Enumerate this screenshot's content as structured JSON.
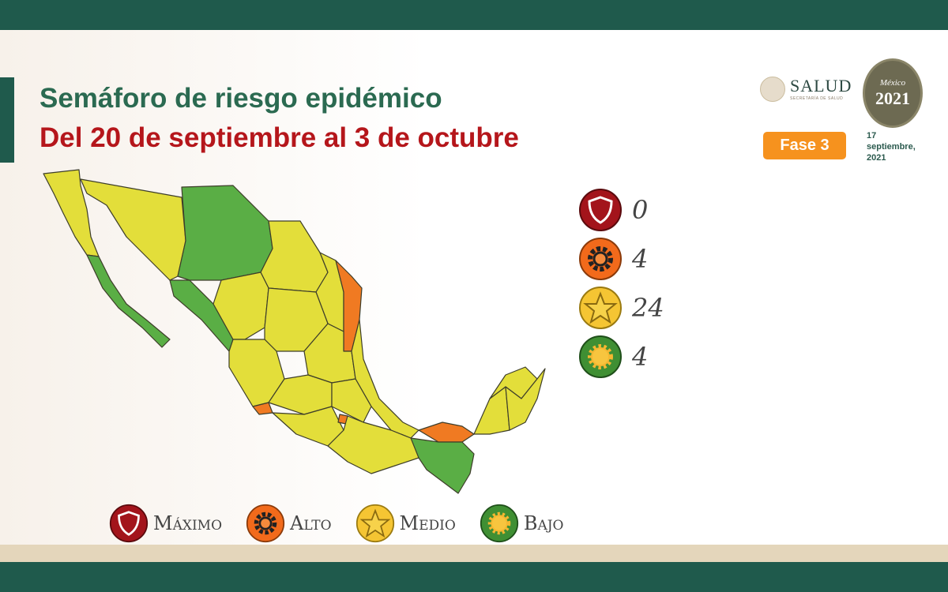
{
  "header": {
    "title": "Semáforo de riesgo epidémico",
    "subtitle": "Del 20 de septiembre al 3 de octubre"
  },
  "logos": {
    "salud": "SALUD",
    "salud_sub": "SECRETARÍA DE SALUD",
    "emblem_top": "México",
    "emblem_year": "2021"
  },
  "phase": "Fase 3",
  "date": {
    "line1": "17",
    "line2": "septiembre,",
    "line3": "2021"
  },
  "counts": [
    {
      "level": "maximo",
      "icon": "shield-icon",
      "color": "#a3141b",
      "value": "0"
    },
    {
      "level": "alto",
      "icon": "gear-icon",
      "color": "#f26a1b",
      "value": "4"
    },
    {
      "level": "medio",
      "icon": "star-icon",
      "color": "#f5c533",
      "value": "24"
    },
    {
      "level": "bajo",
      "icon": "sun-icon",
      "color": "#3f8f33",
      "value": "4"
    }
  ],
  "legend": [
    {
      "label": "Máximo",
      "color": "#a3141b",
      "icon": "shield-icon"
    },
    {
      "label": "Alto",
      "color": "#f26a1b",
      "icon": "gear-icon"
    },
    {
      "label": "Medio",
      "color": "#f5c533",
      "icon": "star-icon"
    },
    {
      "label": "Bajo",
      "color": "#3f8f33",
      "icon": "sun-icon"
    }
  ],
  "map_colors": {
    "medio": "#e3de3a",
    "bajo": "#5aae45",
    "alto": "#f07a22",
    "border": "#3d3d2a"
  }
}
